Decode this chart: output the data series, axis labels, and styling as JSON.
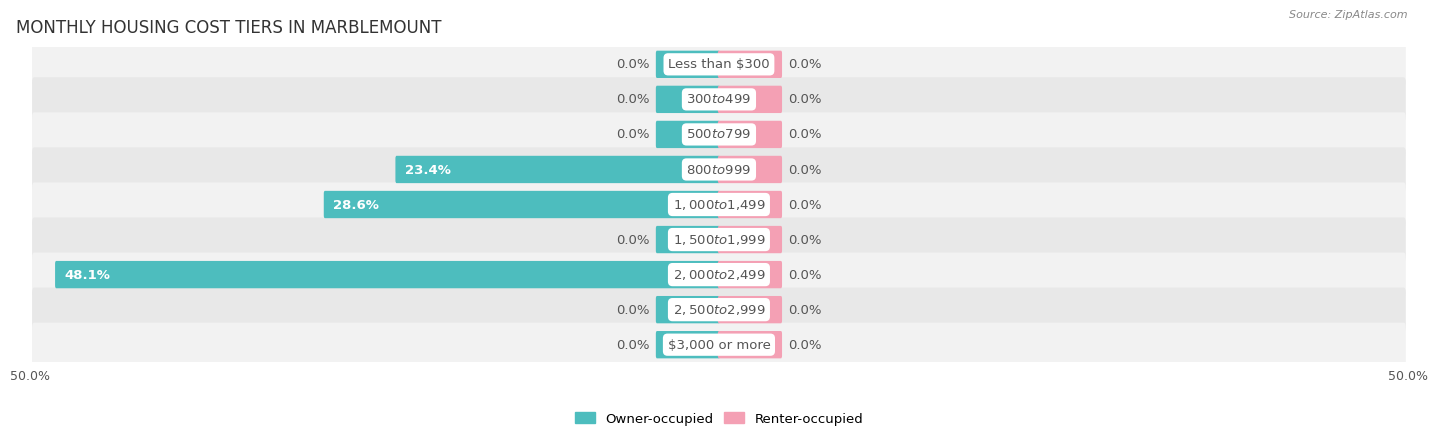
{
  "title": "MONTHLY HOUSING COST TIERS IN MARBLEMOUNT",
  "source": "Source: ZipAtlas.com",
  "categories": [
    "Less than $300",
    "$300 to $499",
    "$500 to $799",
    "$800 to $999",
    "$1,000 to $1,499",
    "$1,500 to $1,999",
    "$2,000 to $2,499",
    "$2,500 to $2,999",
    "$3,000 or more"
  ],
  "owner_values": [
    0.0,
    0.0,
    0.0,
    23.4,
    28.6,
    0.0,
    48.1,
    0.0,
    0.0
  ],
  "renter_values": [
    0.0,
    0.0,
    0.0,
    0.0,
    0.0,
    0.0,
    0.0,
    0.0,
    0.0
  ],
  "owner_color": "#4dbdbe",
  "renter_color": "#f4a0b4",
  "label_color_dark": "#555555",
  "label_color_white": "#ffffff",
  "row_color_light": "#f2f2f2",
  "row_color_dark": "#e8e8e8",
  "x_max": 50.0,
  "x_min": -50.0,
  "min_bar_size": 4.5,
  "bar_height": 0.62,
  "label_fontsize": 9.5,
  "title_fontsize": 12,
  "category_fontsize": 9.5,
  "legend_fontsize": 9.5
}
